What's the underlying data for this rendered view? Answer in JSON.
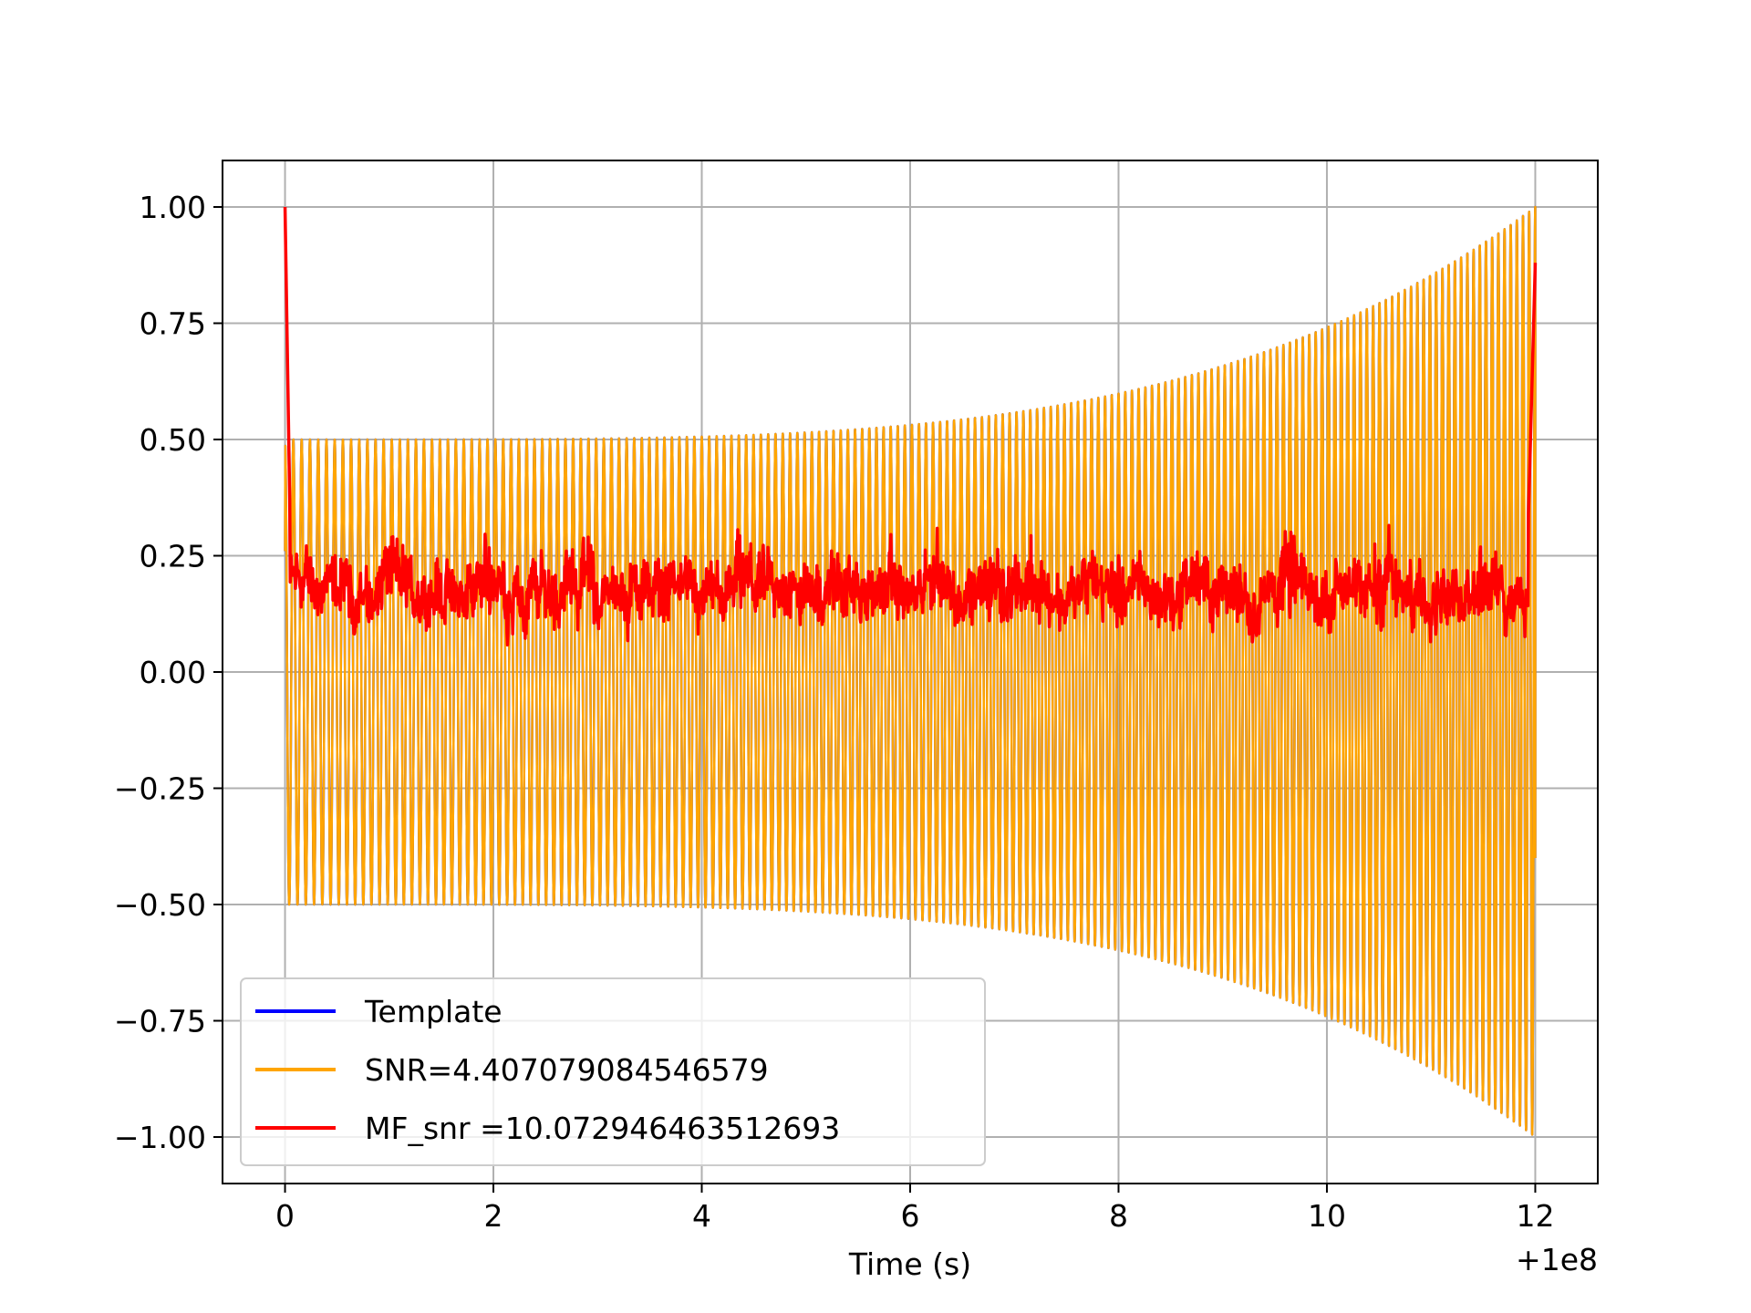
{
  "chart_data": {
    "type": "line",
    "title": "",
    "xlabel": "Time (s)",
    "ylabel": "",
    "x_offset_label": "+1e8",
    "xlim": [
      -0.6,
      12.6
    ],
    "ylim": [
      -1.1,
      1.1
    ],
    "xticks": [
      0,
      2,
      4,
      6,
      8,
      10,
      12
    ],
    "xtick_labels": [
      "0",
      "2",
      "4",
      "6",
      "8",
      "10",
      "12"
    ],
    "yticks": [
      1.0,
      0.75,
      0.5,
      0.25,
      0.0,
      -0.25,
      -0.5,
      -0.75,
      -1.0
    ],
    "ytick_labels": [
      "1.00",
      "0.75",
      "0.50",
      "0.25",
      "0.00",
      "−0.25",
      "−0.50",
      "−0.75",
      "−1.00"
    ],
    "grid": true,
    "legend_position": "lower-left",
    "series": [
      {
        "name": "Template",
        "color": "#0000ff",
        "description_type": "chirp",
        "x_range": [
          0,
          12
        ],
        "amplitude_start": 0.5,
        "amplitude_end": 1.0,
        "cycles": 150
      },
      {
        "name": "SNR=4.407079084546579",
        "color": "#ffa500",
        "description_type": "chirp",
        "x_range": [
          0,
          12
        ],
        "amplitude_start": 0.5,
        "amplitude_end": 1.0,
        "cycles": 150
      },
      {
        "name": "MF_snr =10.072946463512693",
        "color": "#ff0000",
        "description_type": "noise",
        "x_range": [
          0,
          12
        ],
        "start_peak": 1.0,
        "end_peak": 0.88,
        "baseline_min": 0.0,
        "baseline_max": 0.38
      }
    ]
  }
}
